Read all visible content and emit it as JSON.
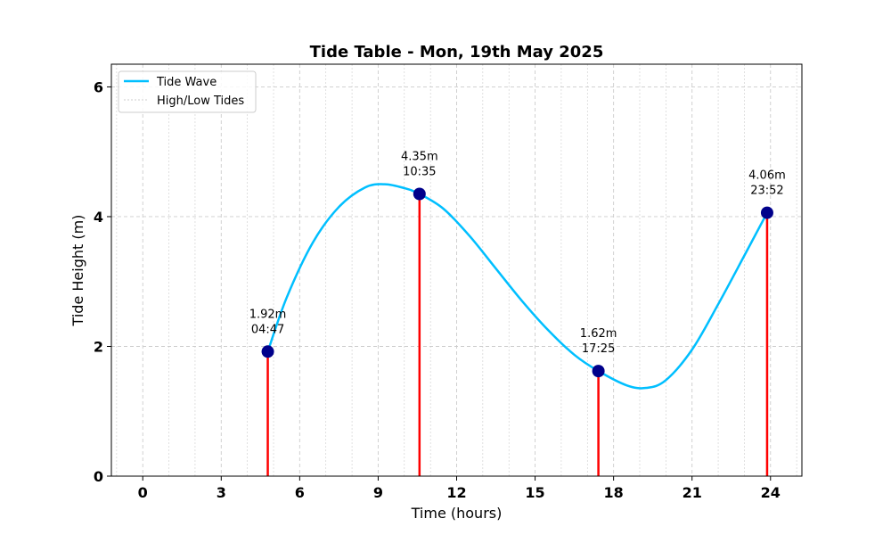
{
  "chart_data": {
    "type": "line",
    "title": "Tide Table - Mon, 19th May 2025",
    "xlabel": "Time (hours)",
    "ylabel": "Tide Height (m)",
    "xlim": [
      -1.2,
      25.2
    ],
    "ylim": [
      0,
      6.35
    ],
    "xticks": [
      0,
      3,
      6,
      9,
      12,
      15,
      18,
      21,
      24
    ],
    "yticks": [
      0,
      2,
      4,
      6
    ],
    "x_minor_grid_step": 1,
    "grid": true,
    "legend_position": "upper-left",
    "legend": [
      "Tide Wave",
      "High/Low Tides"
    ],
    "series": [
      {
        "name": "Tide Wave",
        "color": "#00bfff",
        "x": [
          4.78,
          5.5,
          6.5,
          7.5,
          8.5,
          9.25,
          10.0,
          10.58,
          11.5,
          12.5,
          13.5,
          14.5,
          15.5,
          16.5,
          17.42,
          18.5,
          19.25,
          20.0,
          21.0,
          22.0,
          23.0,
          23.87
        ],
        "y": [
          1.92,
          2.75,
          3.6,
          4.15,
          4.45,
          4.5,
          4.44,
          4.35,
          4.12,
          3.7,
          3.2,
          2.7,
          2.25,
          1.87,
          1.62,
          1.4,
          1.36,
          1.48,
          1.95,
          2.65,
          3.4,
          4.06
        ]
      }
    ],
    "tide_points": [
      {
        "time": "04:47",
        "hour": 4.78,
        "height": 1.92,
        "label": "1.92m"
      },
      {
        "time": "10:35",
        "hour": 10.58,
        "height": 4.35,
        "label": "4.35m"
      },
      {
        "time": "17:25",
        "hour": 17.42,
        "height": 1.62,
        "label": "1.62m"
      },
      {
        "time": "23:52",
        "hour": 23.87,
        "height": 4.06,
        "label": "4.06m"
      }
    ],
    "colors": {
      "wave": "#00bfff",
      "stem": "#ff0000",
      "marker": "#00008b",
      "grid": "#cccccc"
    }
  }
}
